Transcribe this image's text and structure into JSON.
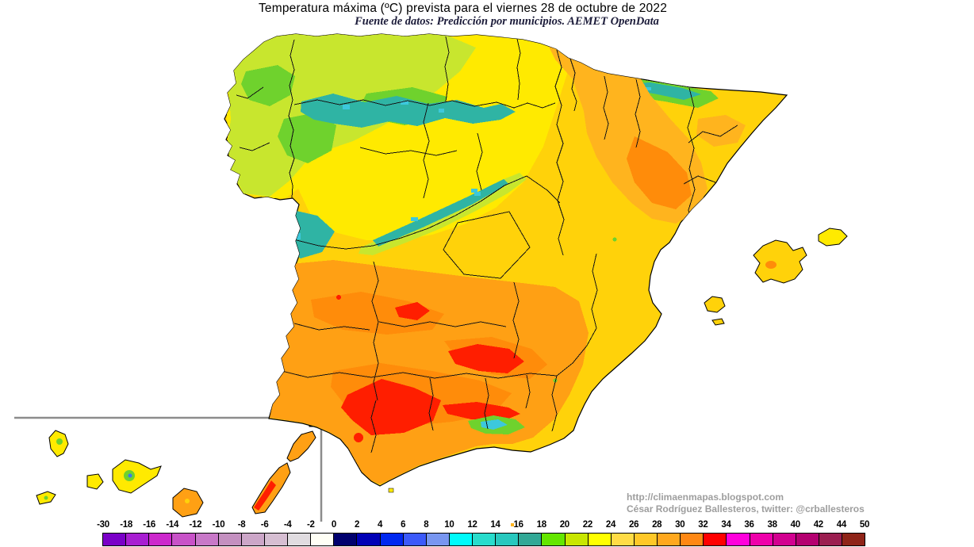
{
  "title": "Temperatura máxima (ºC) prevista para el viernes 28 de octubre de 2022",
  "subtitle": "Fuente de datos: Predicción por municipios. AEMET OpenData",
  "attribution": {
    "url": "http://climaenmapas.blogspot.com",
    "author": "César Rodríguez Ballesteros, twitter: @crballesteros"
  },
  "legend": {
    "unit": "ºC",
    "stops": [
      "-30",
      "-18",
      "-16",
      "-14",
      "-12",
      "-10",
      "-8",
      "-6",
      "-4",
      "-2",
      "0",
      "2",
      "4",
      "6",
      "8",
      "10",
      "12",
      "14",
      "16",
      "18",
      "20",
      "22",
      "24",
      "26",
      "28",
      "30",
      "32",
      "34",
      "36",
      "38",
      "40",
      "42",
      "44",
      "50"
    ],
    "cells": [
      {
        "min": -30,
        "max": -18,
        "color": "#7A00C8"
      },
      {
        "min": -18,
        "max": -16,
        "color": "#A81ED2"
      },
      {
        "min": -16,
        "max": -14,
        "color": "#CC28CC"
      },
      {
        "min": -14,
        "max": -12,
        "color": "#C852C8"
      },
      {
        "min": -12,
        "max": -10,
        "color": "#C878C8"
      },
      {
        "min": -10,
        "max": -8,
        "color": "#C490C0"
      },
      {
        "min": -8,
        "max": -6,
        "color": "#CCA6C8"
      },
      {
        "min": -6,
        "max": -4,
        "color": "#D6BED2"
      },
      {
        "min": -4,
        "max": -2,
        "color": "#E0DCE0"
      },
      {
        "min": -2,
        "max": 0,
        "color": "#FFFFF6"
      },
      {
        "min": 0,
        "max": 2,
        "color": "#00006E"
      },
      {
        "min": 2,
        "max": 4,
        "color": "#0000B6"
      },
      {
        "min": 4,
        "max": 6,
        "color": "#0028F0"
      },
      {
        "min": 6,
        "max": 8,
        "color": "#3C5AFA"
      },
      {
        "min": 8,
        "max": 10,
        "color": "#7896F0"
      },
      {
        "min": 10,
        "max": 12,
        "color": "#00FAFA"
      },
      {
        "min": 12,
        "max": 14,
        "color": "#28DCCC"
      },
      {
        "min": 14,
        "max": 16,
        "color": "#28C8BE"
      },
      {
        "min": 16,
        "max": 18,
        "color": "#32A896"
      },
      {
        "min": 18,
        "max": 20,
        "color": "#64E600"
      },
      {
        "min": 20,
        "max": 22,
        "color": "#C8E600"
      },
      {
        "min": 22,
        "max": 24,
        "color": "#FFFF00"
      },
      {
        "min": 24,
        "max": 26,
        "color": "#FFDC46"
      },
      {
        "min": 26,
        "max": 28,
        "color": "#FFC828"
      },
      {
        "min": 28,
        "max": 30,
        "color": "#FFA81E"
      },
      {
        "min": 30,
        "max": 32,
        "color": "#FF8814"
      },
      {
        "min": 32,
        "max": 34,
        "color": "#FF0000"
      },
      {
        "min": 34,
        "max": 36,
        "color": "#FF00DC"
      },
      {
        "min": 36,
        "max": 38,
        "color": "#EE00AA"
      },
      {
        "min": 38,
        "max": 40,
        "color": "#D20090"
      },
      {
        "min": 40,
        "max": 42,
        "color": "#B40070"
      },
      {
        "min": 42,
        "max": 44,
        "color": "#9B1E50"
      },
      {
        "min": 44,
        "max": 50,
        "color": "#8F2418"
      }
    ]
  },
  "map": {
    "palette": {
      "sea": "#FFFFFF",
      "outline": "#000000",
      "province_border": "#141414",
      "inset_border": "#8C8C8C",
      "base_gold": "#FFD20A",
      "yellow": "#FFEA00",
      "yellow_green": "#C8E62E",
      "green": "#6FD22D",
      "teal": "#2FB4A4",
      "cyan": "#3CC8DC",
      "blue": "#3C78F0",
      "orange_light": "#FFB41E",
      "orange": "#FFA014",
      "orange_deep": "#FF8C0A",
      "red": "#FF1E00"
    },
    "regions": [
      {
        "name": "galicia-northwest",
        "approx_temp_c": "16-22",
        "appearance": "yellow-green with green and teal mountain patches"
      },
      {
        "name": "cantabrian-range",
        "approx_temp_c": "12-16",
        "appearance": "teal band with cyan specks"
      },
      {
        "name": "castilla-y-leon-basin",
        "approx_temp_c": "22-24",
        "appearance": "bright yellow"
      },
      {
        "name": "pyrenees",
        "approx_temp_c": "12-18",
        "appearance": "teal and green band along French border"
      },
      {
        "name": "ebro-valley-northeast",
        "approx_temp_c": "26-30",
        "appearance": "orange with deep orange core"
      },
      {
        "name": "sistema-central",
        "approx_temp_c": "14-18",
        "appearance": "diagonal teal streak with yellow-green halo"
      },
      {
        "name": "center-meseta",
        "approx_temp_c": "24-26",
        "appearance": "gold"
      },
      {
        "name": "extremadura-tajo",
        "approx_temp_c": "28-32",
        "appearance": "deep orange band"
      },
      {
        "name": "guadalquivir-andalucia",
        "approx_temp_c": "30-34",
        "appearance": "deep orange with large red patches"
      },
      {
        "name": "sierra-nevada",
        "approx_temp_c": "10-18",
        "appearance": "green blob with cyan core"
      },
      {
        "name": "mediterranean-coast",
        "approx_temp_c": "24-28",
        "appearance": "gold-orange"
      }
    ],
    "insets": {
      "balearic_islands": [
        "Mallorca",
        "Menorca",
        "Ibiza",
        "Formentera"
      ],
      "canary_islands": [
        "La Palma",
        "El Hierro",
        "La Gomera",
        "Tenerife",
        "Gran Canaria",
        "Fuerteventura",
        "Lanzarote"
      ]
    }
  }
}
